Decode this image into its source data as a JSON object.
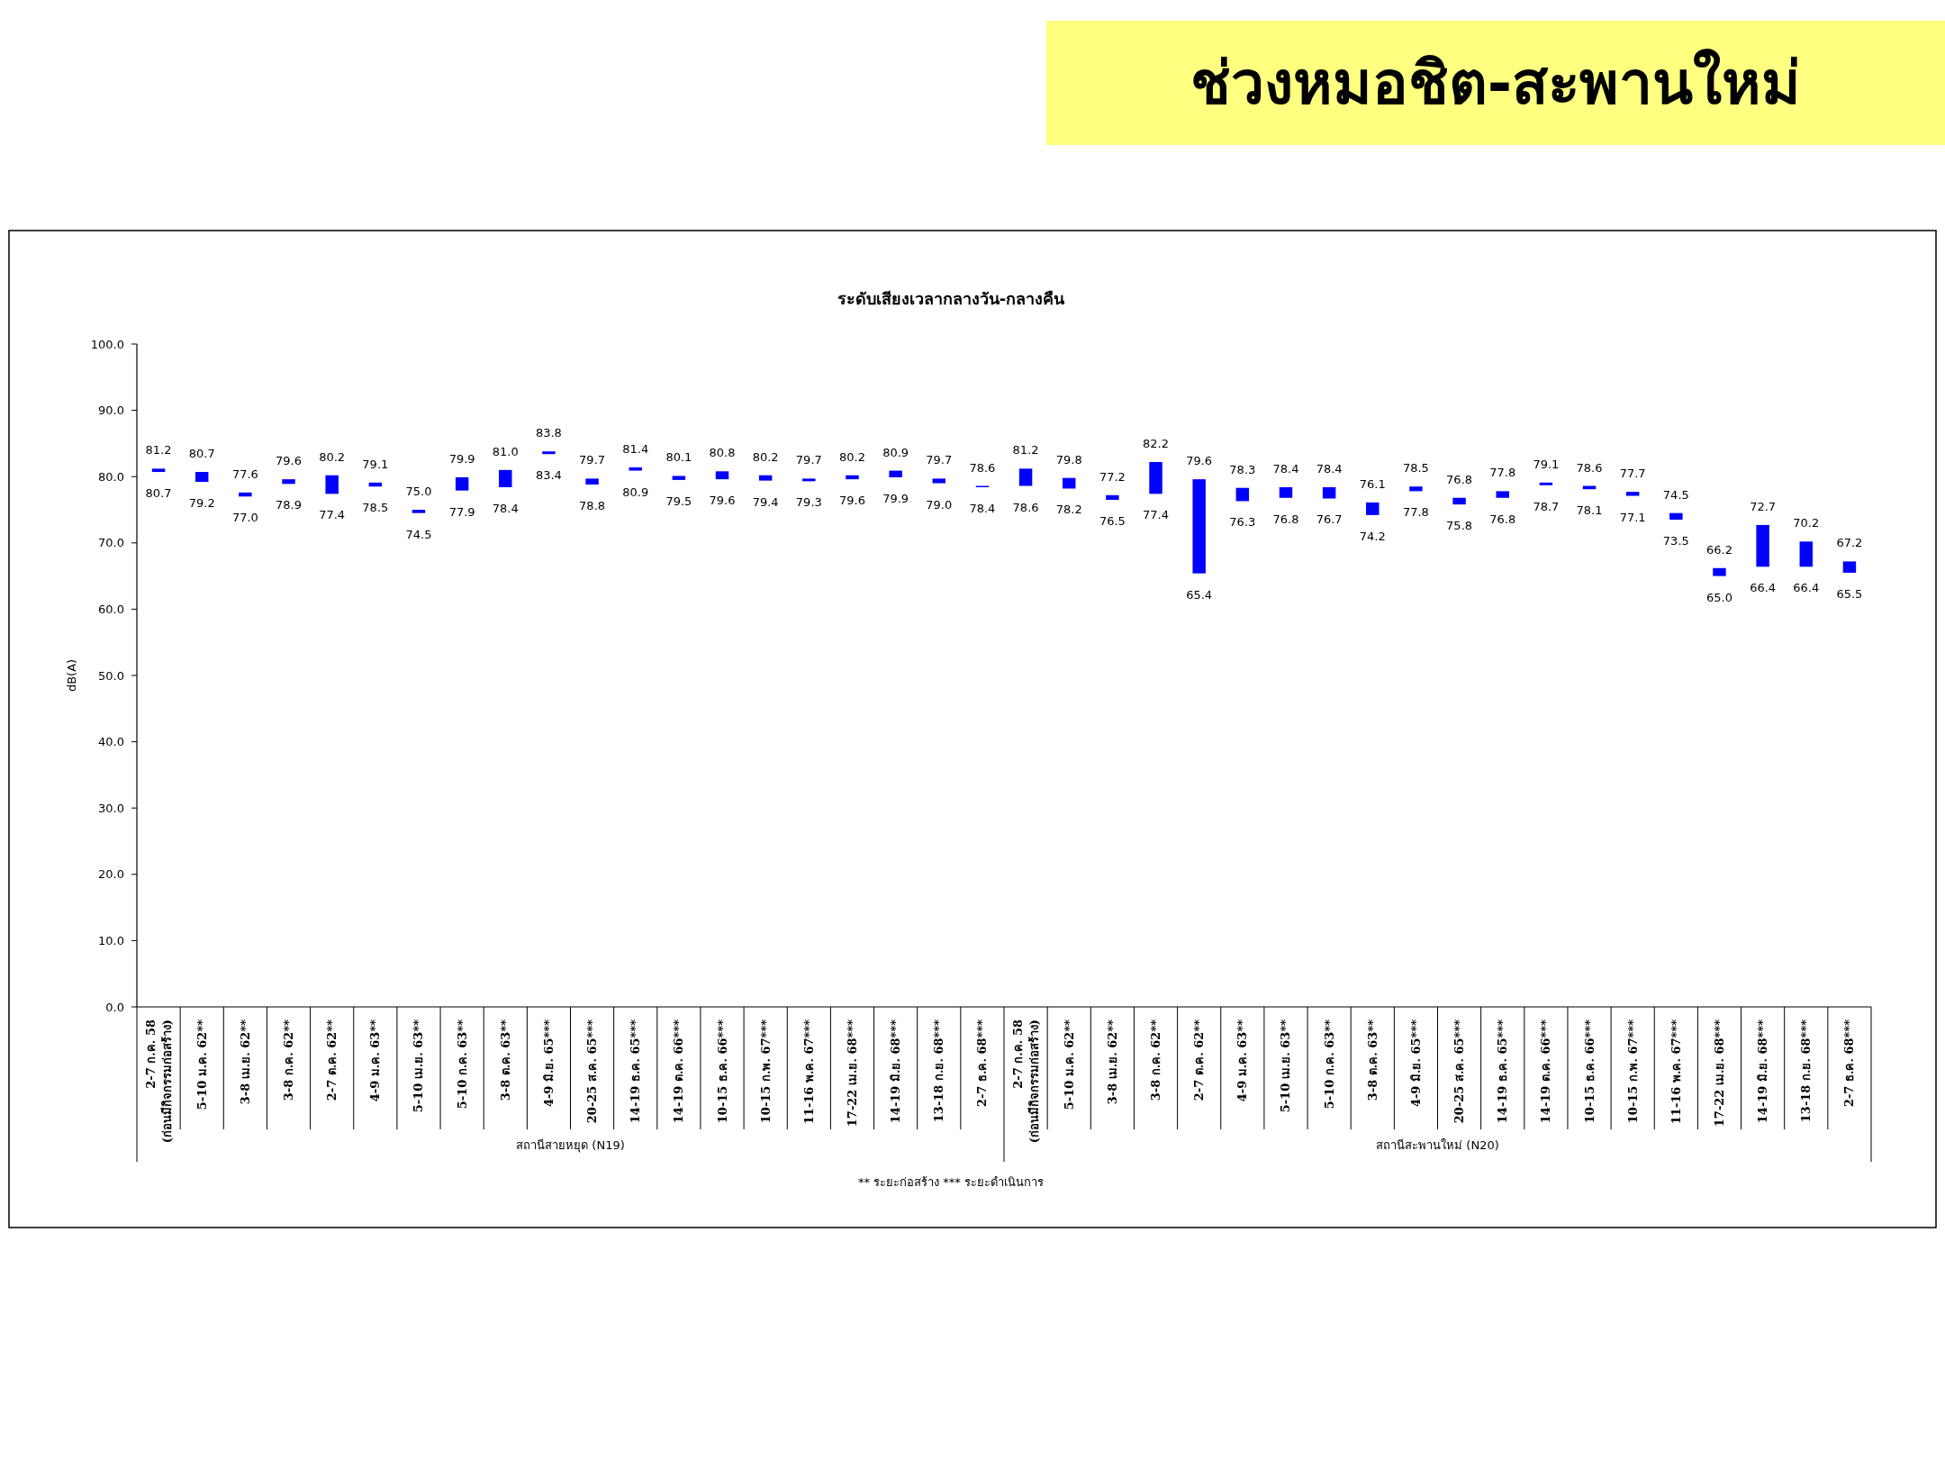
{
  "chart_data": {
    "type": "bar",
    "title": "ช่วงหมอชิต-สะพานใหม่",
    "subtitle": "ระดับเสียงเวลากลางวัน-กลางคืน",
    "ylabel": "dB(A)",
    "categories": [
      "2-7 ก.ค. 58\n(ก่อนมีกิจกรรมก่อสร้าง)",
      "5-10 ม.ค. 62**",
      "3-8 เม.ย. 62**",
      "3-8 ก.ค. 62**",
      "2-7 ต.ค. 62**",
      "4-9 ม.ค. 63**",
      "5-10 เม.ย. 63**",
      "5-10 ก.ค. 63**",
      "3-8 ต.ค. 63**",
      "4-9 มิ.ย. 65***",
      "20-25 ส.ค. 65***",
      "14-19 ธ.ค. 65***",
      "14-19 ต.ค. 66***",
      "10-15 ธ.ค. 66***",
      "10-15 ก.พ. 67***",
      "11-16 พ.ค. 67***",
      "17-22 เม.ย. 68***",
      "14-19 มิ.ย. 68***",
      "13-18 ก.ย. 68***",
      "2-7 ธ.ค. 68***",
      "2-7 ก.ค. 58\n(ก่อนมีกิจกรรมก่อสร้าง)",
      "5-10 ม.ค. 62**",
      "3-8 เม.ย. 62**",
      "3-8 ก.ค. 62**",
      "2-7 ต.ค. 62**",
      "4-9 ม.ค. 63**",
      "5-10 เม.ย. 63**",
      "5-10 ก.ค. 63**",
      "3-8 ต.ค. 63**",
      "4-9 มิ.ย. 65***",
      "20-25 ส.ค. 65***",
      "14-19 ธ.ค. 65***",
      "14-19 ต.ค. 66***",
      "10-15 ธ.ค. 66***",
      "10-15 ก.พ. 67***",
      "11-16 พ.ค. 67***",
      "17-22 เม.ย. 68***",
      "14-19 มิ.ย. 68***",
      "13-18 ก.ย. 68***",
      "2-7 ธ.ค. 68***"
    ],
    "base": [
      80.7,
      79.2,
      77.0,
      78.9,
      77.4,
      78.5,
      74.5,
      77.9,
      78.4,
      83.4,
      78.8,
      80.9,
      79.5,
      79.6,
      79.4,
      79.3,
      79.6,
      79.9,
      79.0,
      78.4,
      78.6,
      78.2,
      76.5,
      77.4,
      65.4,
      76.3,
      76.8,
      76.7,
      74.2,
      77.8,
      75.8,
      76.8,
      78.7,
      78.1,
      77.1,
      73.5,
      65.0,
      66.4,
      66.4,
      65.5
    ],
    "values": [
      0.5,
      1.5,
      0.6,
      0.7,
      2.8,
      0.6,
      0.5,
      2.0,
      2.6,
      0.4,
      0.9,
      0.5,
      0.6,
      1.2,
      0.8,
      0.4,
      0.6,
      1.0,
      0.7,
      0.2,
      2.6,
      1.6,
      0.7,
      4.8,
      14.2,
      2.0,
      1.6,
      1.7,
      1.9,
      0.7,
      1.0,
      1.0,
      0.4,
      0.5,
      0.6,
      1.0,
      1.2,
      6.3,
      3.8,
      1.7
    ],
    "value_labels": [
      [
        "81.2",
        "80.7"
      ],
      [
        "80.7",
        "79.2"
      ],
      [
        "77.6",
        "77.0"
      ],
      [
        "79.6",
        "78.9"
      ],
      [
        "80.2",
        "77.4"
      ],
      [
        "79.1",
        "78.5"
      ],
      [
        "75.0",
        "74.5"
      ],
      [
        "79.9",
        "77.9"
      ],
      [
        "81.0",
        "78.4"
      ],
      [
        "83.8",
        "83.4"
      ],
      [
        "79.7",
        "78.8"
      ],
      [
        "81.4",
        "80.9"
      ],
      [
        "80.1",
        "79.5"
      ],
      [
        "80.8",
        "79.6"
      ],
      [
        "80.2",
        "79.4"
      ],
      [
        "79.7",
        "79.3"
      ],
      [
        "80.2",
        "79.6"
      ],
      [
        "80.9",
        "79.9"
      ],
      [
        "79.7",
        "79.0"
      ],
      [
        "78.6",
        "78.4"
      ],
      [
        "81.2",
        "78.6"
      ],
      [
        "79.8",
        "78.2"
      ],
      [
        "77.2",
        "76.5"
      ],
      [
        "82.2",
        "77.4"
      ],
      [
        "79.6",
        "65.4"
      ],
      [
        "78.3",
        "76.3"
      ],
      [
        "78.4",
        "76.8"
      ],
      [
        "78.4",
        "76.7"
      ],
      [
        "76.1",
        "74.2"
      ],
      [
        "78.5",
        "77.8"
      ],
      [
        "76.8",
        "75.8"
      ],
      [
        "77.8",
        "76.8"
      ],
      [
        "79.1",
        "78.7"
      ],
      [
        "78.6",
        "78.1"
      ],
      [
        "77.7",
        "77.1"
      ],
      [
        "74.5",
        "73.5"
      ],
      [
        "66.2",
        "65.0"
      ],
      [
        "72.7",
        "66.4"
      ],
      [
        "70.2",
        "66.4"
      ],
      [
        "67.2",
        "65.5"
      ]
    ],
    "color": "#0000ff",
    "ylim": [
      0,
      100
    ],
    "yticks": [
      {
        "value": 0,
        "label": "0.0"
      },
      {
        "value": 10,
        "label": "10.0"
      },
      {
        "value": 20,
        "label": "20.0"
      },
      {
        "value": 30,
        "label": "30.0"
      },
      {
        "value": 40,
        "label": "40.0"
      },
      {
        "value": 50,
        "label": "50.0"
      },
      {
        "value": 60,
        "label": "60.0"
      },
      {
        "value": 70,
        "label": "70.0"
      },
      {
        "value": 80,
        "label": "80.0"
      },
      {
        "value": 90,
        "label": "90.0"
      },
      {
        "value": 100,
        "label": "100.0"
      }
    ],
    "annotations": [
      "สถานีสายหยุด (N19)",
      "สถานีสะพานใหม่ (N20)",
      "** ระยะก่อสร้าง    *** ระยะดำเนินการ"
    ]
  }
}
